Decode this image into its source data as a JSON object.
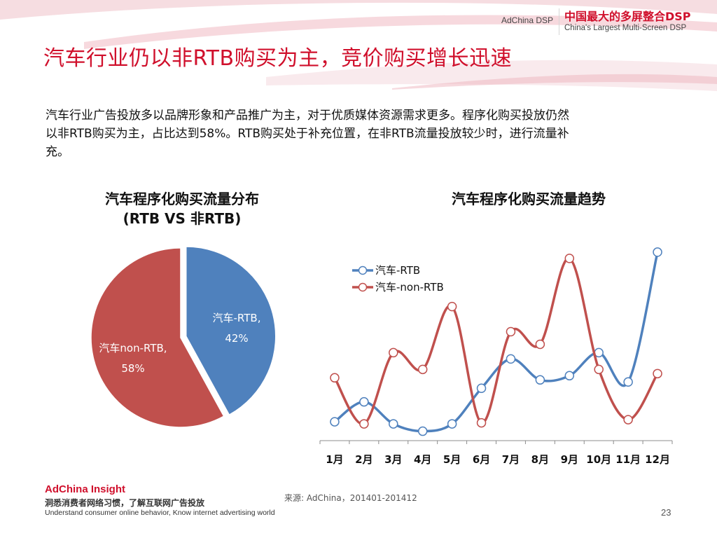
{
  "header": {
    "brand_small": "AdChina DSP",
    "brand_cn": "中国最大的多屏整合DSP",
    "brand_en": "China's Largest Multi-Screen DSP"
  },
  "page": {
    "title": "汽车行业仍以非RTB购买为主，竞价购买增长迅速",
    "intro_lines": [
      "汽车行业广告投放多以品牌形象和产品推广为主，对于优质媒体资源需求更多。程序化购买投放仍然",
      "以非RTB购买为主，占比达到58%。RTB购买处于补充位置，在非RTB流量投放较少时，进行流量补",
      "充。"
    ]
  },
  "chart_data": [
    {
      "type": "pie",
      "title_lines": [
        "汽车程序化购买流量分布",
        "(RTB VS 非RTB)"
      ],
      "slices": [
        {
          "name": "汽车-RTB,",
          "value": 42,
          "label": "42%",
          "color": "#4f81bd"
        },
        {
          "name": "汽车non-RTB,",
          "value": 58,
          "label": "58%",
          "color": "#c0504d"
        }
      ]
    },
    {
      "type": "line",
      "title": "汽车程序化购买流量趋势",
      "categories": [
        "1月",
        "2月",
        "3月",
        "4月",
        "5月",
        "6月",
        "7月",
        "8月",
        "9月",
        "10月",
        "11月",
        "12月"
      ],
      "ylim": [
        0,
        100
      ],
      "grid": false,
      "legend_position": "top-left",
      "series": [
        {
          "name": "汽车-RTB",
          "color": "#4f81bd",
          "values": [
            9,
            18.5,
            8,
            4.5,
            8,
            25,
            39,
            29,
            31,
            42,
            28,
            90
          ]
        },
        {
          "name": "汽车-non-RTB",
          "color": "#c0504d",
          "values": [
            30,
            8,
            42,
            34,
            64,
            8.5,
            52,
            46,
            87,
            34,
            10,
            32
          ]
        }
      ]
    }
  ],
  "footer": {
    "brand": "AdChina Insight",
    "cn": "洞悉消费者网络习惯，了解互联网广告投放",
    "en": "Understand consumer online behavior, Know internet advertising world",
    "source": "来源: AdChina，201401-201412",
    "page_number": "23"
  }
}
